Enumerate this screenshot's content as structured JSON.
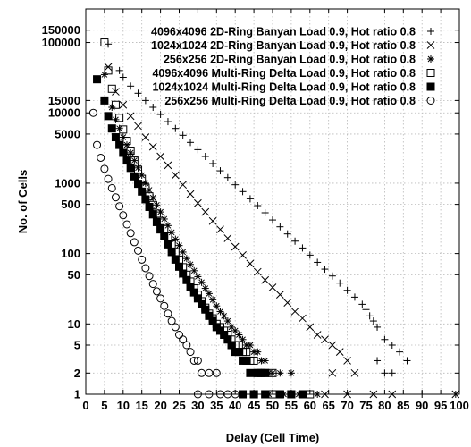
{
  "chart_data": {
    "type": "scatter",
    "xlabel": "Delay (Cell Time)",
    "ylabel": "No. of Cells",
    "xlim": [
      0,
      100
    ],
    "ylim": [
      1,
      300000
    ],
    "yscale": "log",
    "grid": true,
    "legend_position": "top-right",
    "xticks": [
      0,
      5,
      10,
      15,
      20,
      25,
      30,
      35,
      40,
      45,
      50,
      55,
      60,
      65,
      70,
      75,
      80,
      85,
      90,
      95,
      100
    ],
    "yticks": [
      1,
      2,
      5,
      10,
      50,
      100,
      500,
      1000,
      5000,
      10000,
      15000,
      100000,
      150000
    ],
    "series": [
      {
        "name": "4096x4096 2D-Ring Banyan Load 0.9, Hot ratio 0.8",
        "marker": "plus",
        "points": [
          [
            6,
            95000
          ],
          [
            9,
            40000
          ],
          [
            10,
            32000
          ],
          [
            12,
            24000
          ],
          [
            14,
            19000
          ],
          [
            16,
            15000
          ],
          [
            18,
            12000
          ],
          [
            20,
            9500
          ],
          [
            22,
            7500
          ],
          [
            24,
            6000
          ],
          [
            26,
            4800
          ],
          [
            28,
            3800
          ],
          [
            30,
            3000
          ],
          [
            32,
            2400
          ],
          [
            34,
            1900
          ],
          [
            36,
            1500
          ],
          [
            38,
            1200
          ],
          [
            40,
            950
          ],
          [
            42,
            760
          ],
          [
            44,
            600
          ],
          [
            46,
            480
          ],
          [
            48,
            380
          ],
          [
            50,
            300
          ],
          [
            52,
            240
          ],
          [
            54,
            190
          ],
          [
            56,
            150
          ],
          [
            58,
            120
          ],
          [
            60,
            95
          ],
          [
            62,
            75
          ],
          [
            64,
            60
          ],
          [
            66,
            48
          ],
          [
            68,
            38
          ],
          [
            70,
            30
          ],
          [
            72,
            24
          ],
          [
            74,
            19
          ],
          [
            75,
            16
          ],
          [
            76,
            13
          ],
          [
            77,
            11
          ],
          [
            78,
            9
          ],
          [
            80,
            6
          ],
          [
            82,
            5
          ],
          [
            84,
            4
          ],
          [
            86,
            3
          ],
          [
            78,
            3
          ],
          [
            80,
            2
          ],
          [
            82,
            2
          ],
          [
            90,
            1
          ],
          [
            99,
            1
          ]
        ]
      },
      {
        "name": "1024x1024 2D-Ring Banyan Load 0.9, Hot ratio 0.8",
        "marker": "cross",
        "points": [
          [
            6,
            45000
          ],
          [
            8,
            20000
          ],
          [
            10,
            13000
          ],
          [
            12,
            9000
          ],
          [
            14,
            6500
          ],
          [
            16,
            4500
          ],
          [
            18,
            3300
          ],
          [
            20,
            2400
          ],
          [
            22,
            1800
          ],
          [
            24,
            1300
          ],
          [
            26,
            950
          ],
          [
            28,
            700
          ],
          [
            30,
            520
          ],
          [
            32,
            390
          ],
          [
            34,
            290
          ],
          [
            36,
            220
          ],
          [
            38,
            165
          ],
          [
            40,
            125
          ],
          [
            42,
            95
          ],
          [
            44,
            72
          ],
          [
            46,
            55
          ],
          [
            48,
            42
          ],
          [
            50,
            33
          ],
          [
            52,
            26
          ],
          [
            54,
            20
          ],
          [
            56,
            15
          ],
          [
            58,
            12
          ],
          [
            60,
            9
          ],
          [
            62,
            7
          ],
          [
            64,
            6
          ],
          [
            66,
            5
          ],
          [
            68,
            4
          ],
          [
            70,
            3
          ],
          [
            66,
            2
          ],
          [
            72,
            2
          ],
          [
            64,
            1
          ],
          [
            70,
            1
          ],
          [
            77,
            1
          ],
          [
            82,
            1
          ],
          [
            99,
            1
          ]
        ]
      },
      {
        "name": "256x256 2D-Ring Banyan Load 0.9, Hot ratio 0.8",
        "marker": "asterisk",
        "points": [
          [
            5,
            35000
          ],
          [
            7,
            12000
          ],
          [
            8,
            8000
          ],
          [
            9,
            6000
          ],
          [
            10,
            4500
          ],
          [
            11,
            3500
          ],
          [
            12,
            2700
          ],
          [
            13,
            2100
          ],
          [
            14,
            1650
          ],
          [
            15,
            1300
          ],
          [
            16,
            1000
          ],
          [
            17,
            800
          ],
          [
            18,
            620
          ],
          [
            19,
            490
          ],
          [
            20,
            390
          ],
          [
            21,
            310
          ],
          [
            22,
            250
          ],
          [
            23,
            200
          ],
          [
            24,
            160
          ],
          [
            25,
            130
          ],
          [
            26,
            105
          ],
          [
            27,
            85
          ],
          [
            28,
            70
          ],
          [
            29,
            57
          ],
          [
            30,
            47
          ],
          [
            31,
            39
          ],
          [
            32,
            32
          ],
          [
            33,
            27
          ],
          [
            34,
            22
          ],
          [
            35,
            18
          ],
          [
            36,
            15
          ],
          [
            37,
            13
          ],
          [
            38,
            11
          ],
          [
            39,
            9
          ],
          [
            40,
            8
          ],
          [
            41,
            7
          ],
          [
            42,
            6
          ],
          [
            43,
            5
          ],
          [
            44,
            5
          ],
          [
            45,
            4
          ],
          [
            46,
            4
          ],
          [
            47,
            3
          ],
          [
            48,
            3
          ],
          [
            49,
            2
          ],
          [
            50,
            2
          ],
          [
            52,
            2
          ],
          [
            55,
            2
          ],
          [
            49,
            1
          ],
          [
            53,
            1
          ],
          [
            57,
            1
          ],
          [
            62,
            1
          ]
        ]
      },
      {
        "name": "4096x4096 Multi-Ring Delta Load 0.9, Hot ratio 0.8",
        "marker": "square",
        "points": [
          [
            5,
            100000
          ],
          [
            6,
            40000
          ],
          [
            7,
            22000
          ],
          [
            8,
            13000
          ],
          [
            9,
            8500
          ],
          [
            10,
            5800
          ],
          [
            11,
            4000
          ],
          [
            12,
            2900
          ],
          [
            13,
            2100
          ],
          [
            14,
            1550
          ],
          [
            15,
            1150
          ],
          [
            16,
            860
          ],
          [
            17,
            650
          ],
          [
            18,
            490
          ],
          [
            19,
            370
          ],
          [
            20,
            290
          ],
          [
            21,
            225
          ],
          [
            22,
            175
          ],
          [
            23,
            135
          ],
          [
            24,
            105
          ],
          [
            25,
            82
          ],
          [
            26,
            64
          ],
          [
            27,
            50
          ],
          [
            28,
            40
          ],
          [
            29,
            32
          ],
          [
            30,
            26
          ],
          [
            31,
            21
          ],
          [
            32,
            17
          ],
          [
            33,
            14
          ],
          [
            34,
            12
          ],
          [
            35,
            10
          ],
          [
            36,
            9
          ],
          [
            37,
            8
          ],
          [
            38,
            7
          ],
          [
            39,
            6
          ],
          [
            40,
            5
          ],
          [
            41,
            5
          ],
          [
            42,
            4
          ],
          [
            43,
            4
          ],
          [
            44,
            3
          ],
          [
            45,
            3
          ],
          [
            46,
            2
          ],
          [
            47,
            2
          ],
          [
            48,
            2
          ],
          [
            50,
            2
          ],
          [
            45,
            1
          ],
          [
            50,
            1
          ],
          [
            55,
            1
          ],
          [
            60,
            1
          ]
        ]
      },
      {
        "name": "1024x1024 Multi-Ring Delta Load 0.9, Hot ratio 0.8",
        "marker": "filled-square",
        "points": [
          [
            3,
            30000
          ],
          [
            5,
            15000
          ],
          [
            6,
            9000
          ],
          [
            7,
            6000
          ],
          [
            8,
            4500
          ],
          [
            9,
            3500
          ],
          [
            10,
            2700
          ],
          [
            11,
            2100
          ],
          [
            12,
            1650
          ],
          [
            13,
            1250
          ],
          [
            14,
            980
          ],
          [
            15,
            760
          ],
          [
            16,
            590
          ],
          [
            17,
            460
          ],
          [
            18,
            360
          ],
          [
            19,
            280
          ],
          [
            20,
            220
          ],
          [
            21,
            175
          ],
          [
            22,
            135
          ],
          [
            23,
            105
          ],
          [
            24,
            82
          ],
          [
            25,
            65
          ],
          [
            26,
            52
          ],
          [
            27,
            42
          ],
          [
            28,
            34
          ],
          [
            29,
            28
          ],
          [
            30,
            23
          ],
          [
            31,
            19
          ],
          [
            32,
            16
          ],
          [
            33,
            13
          ],
          [
            34,
            11
          ],
          [
            35,
            9
          ],
          [
            36,
            8
          ],
          [
            37,
            7
          ],
          [
            38,
            6
          ],
          [
            39,
            5
          ],
          [
            40,
            4
          ],
          [
            41,
            4
          ],
          [
            42,
            3
          ],
          [
            43,
            3
          ],
          [
            44,
            2
          ],
          [
            46,
            2
          ],
          [
            48,
            2
          ],
          [
            42,
            1
          ],
          [
            45,
            1
          ],
          [
            48,
            1
          ],
          [
            52,
            1
          ],
          [
            55,
            1
          ],
          [
            58,
            1
          ]
        ]
      },
      {
        "name": "256x256 Multi-Ring Delta Load 0.9, Hot ratio 0.8",
        "marker": "circle",
        "points": [
          [
            2,
            10000
          ],
          [
            3,
            3500
          ],
          [
            4,
            2300
          ],
          [
            5,
            1600
          ],
          [
            6,
            1150
          ],
          [
            7,
            850
          ],
          [
            8,
            630
          ],
          [
            9,
            470
          ],
          [
            10,
            350
          ],
          [
            11,
            260
          ],
          [
            12,
            195
          ],
          [
            13,
            145
          ],
          [
            14,
            110
          ],
          [
            15,
            82
          ],
          [
            16,
            62
          ],
          [
            17,
            48
          ],
          [
            18,
            37
          ],
          [
            19,
            29
          ],
          [
            20,
            23
          ],
          [
            21,
            18
          ],
          [
            22,
            14
          ],
          [
            23,
            11
          ],
          [
            24,
            9
          ],
          [
            25,
            7
          ],
          [
            26,
            6
          ],
          [
            27,
            5
          ],
          [
            28,
            4
          ],
          [
            29,
            3
          ],
          [
            30,
            3
          ],
          [
            31,
            2
          ],
          [
            33,
            2
          ],
          [
            35,
            2
          ],
          [
            30,
            1
          ],
          [
            33,
            1
          ],
          [
            36,
            1
          ],
          [
            38,
            1
          ],
          [
            40,
            1
          ]
        ]
      }
    ]
  }
}
